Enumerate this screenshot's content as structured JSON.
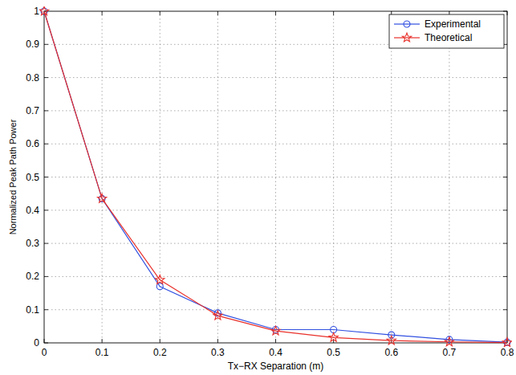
{
  "chart_data": {
    "type": "line",
    "x_label": "Tx−RX Separation (m)",
    "y_label": "Normalized Peak Path Power",
    "x": [
      0,
      0.1,
      0.2,
      0.3,
      0.4,
      0.5,
      0.6,
      0.7,
      0.8
    ],
    "series": [
      {
        "name": "Experimental",
        "color": "#3150e0",
        "marker": "circle",
        "line_style": "solid",
        "values": [
          1,
          0.435,
          0.17,
          0.09,
          0.04,
          0.04,
          0.024,
          0.01,
          0.002
        ]
      },
      {
        "name": "Theoretical",
        "color": "#e8302a",
        "marker": "star",
        "line_style": "solid",
        "values": [
          1,
          0.435,
          0.19,
          0.082,
          0.036,
          0.016,
          0.007,
          0.003,
          0.001
        ]
      }
    ],
    "xlim": [
      0,
      0.8
    ],
    "ylim": [
      0,
      1
    ],
    "xticks": [
      0,
      0.1,
      0.2,
      0.3,
      0.4,
      0.5,
      0.6,
      0.7,
      0.8
    ],
    "yticks": [
      0,
      0.1,
      0.2,
      0.3,
      0.4,
      0.5,
      0.6,
      0.7,
      0.8,
      0.9,
      1
    ],
    "grid": true,
    "legend": "top-right"
  }
}
